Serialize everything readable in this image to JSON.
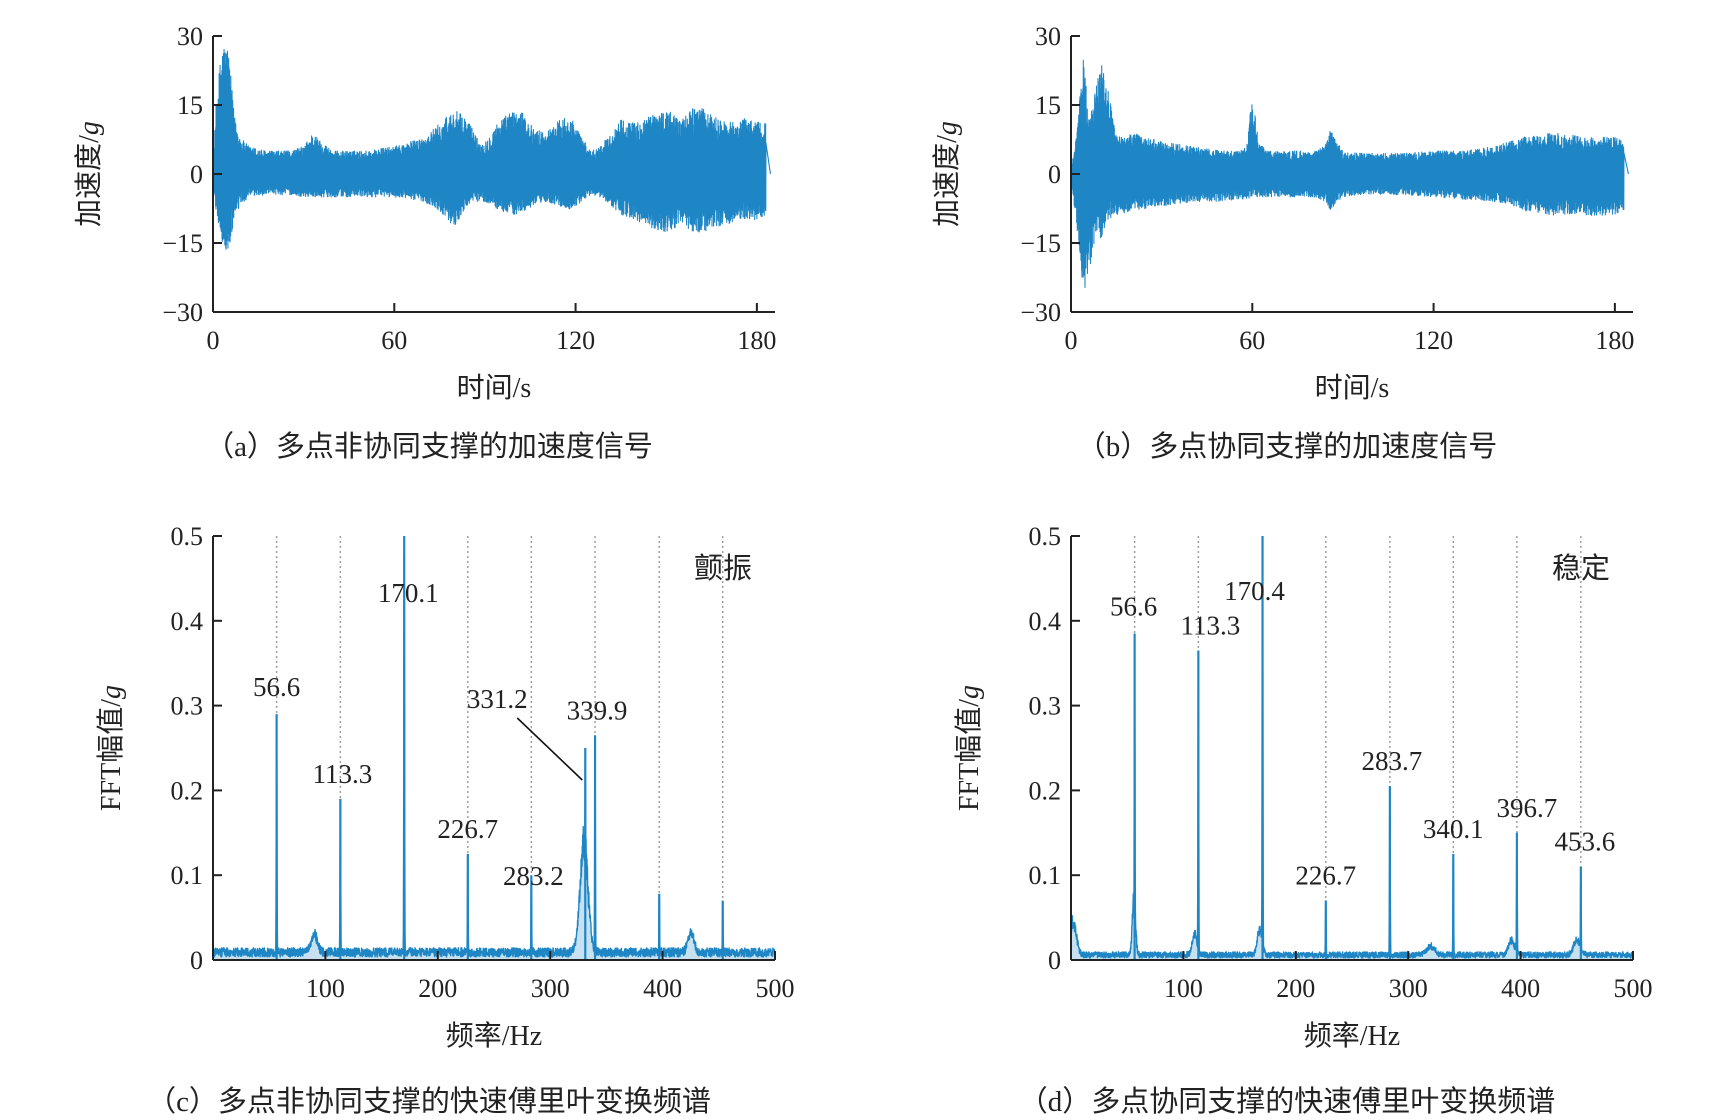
{
  "chart_data": [
    {
      "id": "a",
      "type": "line",
      "caption": "（a）多点非协同支撑的加速度信号",
      "xlabel": "时间/s",
      "ylabel": "加速度/",
      "ylabel_unit": "g",
      "xlim": [
        0,
        186
      ],
      "ylim": [
        -30,
        30
      ],
      "xticks": [
        0,
        60,
        120,
        180
      ],
      "yticks": [
        -30,
        -15,
        0,
        15,
        30
      ],
      "ytick_labels": [
        "−30",
        "−15",
        "0",
        "15",
        "30"
      ],
      "color": "#1f86c6",
      "envelope": {
        "t": [
          0,
          1,
          3,
          5,
          7,
          9,
          12,
          18,
          25,
          30,
          33,
          36,
          40,
          45,
          50,
          55,
          60,
          65,
          70,
          75,
          78,
          80,
          82,
          84,
          86,
          88,
          90,
          95,
          100,
          103,
          106,
          110,
          115,
          118,
          122,
          125,
          128,
          132,
          135,
          140,
          145,
          150,
          155,
          160,
          165,
          170,
          175,
          180,
          183
        ],
        "upper": [
          1,
          15,
          29,
          28,
          13,
          8,
          6,
          5,
          5,
          6,
          9,
          7,
          5,
          5,
          5,
          5.5,
          6,
          7,
          8,
          11,
          13,
          14,
          13,
          12,
          10,
          7,
          7,
          12,
          14,
          13,
          10,
          9,
          12,
          13,
          8,
          5,
          6,
          9,
          12,
          11,
          13,
          14,
          12,
          15,
          13,
          11,
          12,
          12,
          11
        ],
        "lower": [
          -1,
          -8,
          -15,
          -18,
          -10,
          -7,
          -5,
          -4.5,
          -4.5,
          -5,
          -5,
          -5,
          -5,
          -5,
          -5,
          -5,
          -5,
          -5.5,
          -6,
          -8,
          -10,
          -12,
          -9,
          -7,
          -6,
          -6,
          -6,
          -8,
          -9,
          -8,
          -7,
          -6,
          -7,
          -8,
          -6,
          -4.5,
          -5,
          -7,
          -9,
          -10,
          -12,
          -13,
          -11,
          -13,
          -12,
          -11,
          -10,
          -10,
          -9
        ]
      }
    },
    {
      "id": "b",
      "type": "line",
      "caption": "（b）多点协同支撑的加速度信号",
      "xlabel": "时间/s",
      "ylabel": "加速度/",
      "ylabel_unit": "g",
      "xlim": [
        0,
        186
      ],
      "ylim": [
        -30,
        30
      ],
      "xticks": [
        0,
        60,
        120,
        180
      ],
      "yticks": [
        -30,
        -15,
        0,
        15,
        30
      ],
      "ytick_labels": [
        "−30",
        "−15",
        "0",
        "15",
        "30"
      ],
      "color": "#1f86c6",
      "envelope": {
        "t": [
          0,
          2,
          4,
          6,
          8,
          10,
          12,
          15,
          20,
          30,
          40,
          50,
          55,
          58,
          60,
          62,
          65,
          70,
          80,
          84,
          86,
          88,
          90,
          95,
          100,
          110,
          120,
          130,
          140,
          145,
          150,
          160,
          170,
          180,
          183
        ],
        "upper": [
          1,
          10,
          26,
          12,
          18,
          26,
          20,
          8,
          9,
          7,
          6,
          5,
          5,
          6,
          18,
          7,
          5,
          5,
          5,
          6,
          10,
          7,
          5,
          4.5,
          4.5,
          4.5,
          5,
          5,
          6,
          7,
          8,
          9,
          8,
          8,
          7
        ],
        "lower": [
          -1,
          -12,
          -26,
          -22,
          -14,
          -14,
          -10,
          -9,
          -8,
          -7,
          -6,
          -6,
          -5.5,
          -5.5,
          -5,
          -5,
          -5,
          -5,
          -5,
          -6,
          -8,
          -6,
          -5,
          -4.5,
          -4.5,
          -4.5,
          -5,
          -5.5,
          -6,
          -6.5,
          -8,
          -9,
          -9,
          -9,
          -8
        ]
      }
    },
    {
      "id": "c",
      "type": "line",
      "caption": "（c）多点非协同支撑的快速傅里叶变换频谱",
      "xlabel": "频率/Hz",
      "ylabel": "FFT幅值/",
      "ylabel_unit": "g",
      "corner_label": "颤振",
      "xlim": [
        0,
        500
      ],
      "ylim": [
        0,
        0.5
      ],
      "xticks": [
        100,
        200,
        300,
        400,
        500
      ],
      "yticks": [
        0,
        0.1,
        0.2,
        0.3,
        0.4,
        0.5
      ],
      "ytick_labels": [
        "0",
        "0.1",
        "0.2",
        "0.3",
        "0.4",
        "0.5"
      ],
      "color": "#1f86c6",
      "gridlines": [
        56.6,
        113.3,
        170.1,
        226.7,
        283.2,
        339.9,
        397,
        453.5
      ],
      "peaks": [
        {
          "x": 56.6,
          "y": 0.29,
          "label": "56.6"
        },
        {
          "x": 113.3,
          "y": 0.19,
          "label": "113.3"
        },
        {
          "x": 170.1,
          "y": 0.5,
          "label": "170.1"
        },
        {
          "x": 226.7,
          "y": 0.125,
          "label": "226.7"
        },
        {
          "x": 283.2,
          "y": 0.1,
          "label": "283.2"
        },
        {
          "x": 331.2,
          "y": 0.25,
          "label": "331.2"
        },
        {
          "x": 339.9,
          "y": 0.265,
          "label": "339.9"
        },
        {
          "x": 397,
          "y": 0.078
        },
        {
          "x": 453.5,
          "y": 0.07
        }
      ],
      "bumps": [
        {
          "x": 90,
          "y": 0.025,
          "w": 4
        },
        {
          "x": 330,
          "y": 0.15,
          "w": 5
        },
        {
          "x": 425,
          "y": 0.025,
          "w": 4
        }
      ],
      "noise_floor": 0.012
    },
    {
      "id": "d",
      "type": "line",
      "caption": "（d）多点协同支撑的快速傅里叶变换频谱",
      "xlabel": "频率/Hz",
      "ylabel": "FFT幅值/",
      "ylabel_unit": "g",
      "corner_label": "稳定",
      "xlim": [
        0,
        500
      ],
      "ylim": [
        0,
        0.5
      ],
      "xticks": [
        100,
        200,
        300,
        400,
        500
      ],
      "yticks": [
        0,
        0.1,
        0.2,
        0.3,
        0.4,
        0.5
      ],
      "ytick_labels": [
        "0",
        "0.1",
        "0.2",
        "0.3",
        "0.4",
        "0.5"
      ],
      "color": "#1f86c6",
      "gridlines": [
        56.6,
        113.3,
        170.4,
        226.7,
        283.7,
        340.1,
        396.7,
        453.6
      ],
      "peaks": [
        {
          "x": 56.6,
          "y": 0.385,
          "label": "56.6"
        },
        {
          "x": 113.3,
          "y": 0.365,
          "label": "113.3"
        },
        {
          "x": 170.4,
          "y": 0.5,
          "label": "170.4"
        },
        {
          "x": 226.7,
          "y": 0.07,
          "label": "226.7"
        },
        {
          "x": 283.7,
          "y": 0.205,
          "label": "283.7"
        },
        {
          "x": 340.1,
          "y": 0.125,
          "label": "340.1"
        },
        {
          "x": 396.7,
          "y": 0.15,
          "label": "396.7"
        },
        {
          "x": 453.6,
          "y": 0.11,
          "label": "453.6"
        }
      ],
      "bumps": [
        {
          "x": 2,
          "y": 0.045,
          "w": 4
        },
        {
          "x": 56,
          "y": 0.08,
          "w": 2
        },
        {
          "x": 110,
          "y": 0.03,
          "w": 3
        },
        {
          "x": 168,
          "y": 0.035,
          "w": 3
        },
        {
          "x": 320,
          "y": 0.012,
          "w": 5
        },
        {
          "x": 392,
          "y": 0.02,
          "w": 4
        },
        {
          "x": 450,
          "y": 0.02,
          "w": 4
        }
      ],
      "noise_floor": 0.008
    }
  ]
}
